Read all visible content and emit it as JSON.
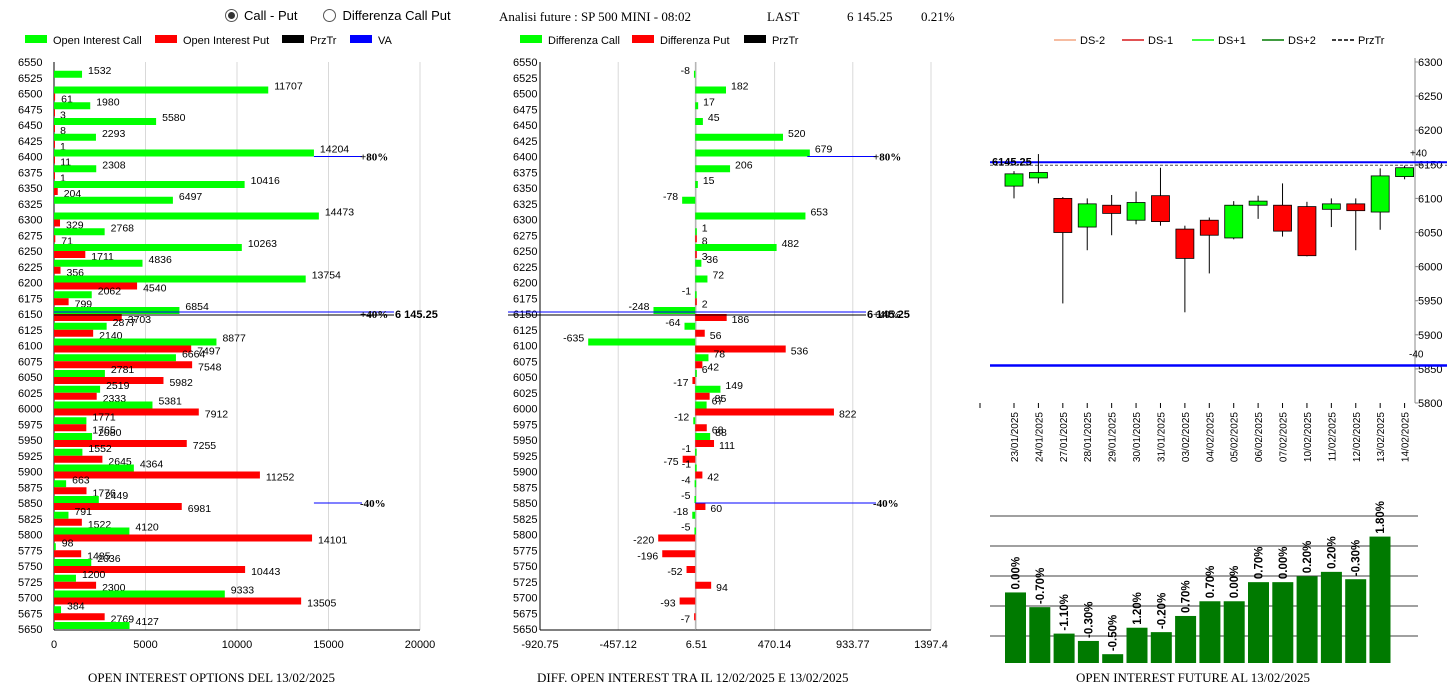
{
  "toolbar": {
    "radio_call_put": "Call - Put",
    "radio_diff": "Differenza Call Put",
    "header_title": "Analisi future : SP 500 MINI - 08:02",
    "header_last_label": "LAST",
    "header_last_value": "6 145.25",
    "header_change": "0.21%"
  },
  "colors": {
    "call": "#00ff00",
    "put": "#ff0000",
    "prztr": "#000000",
    "va": "#0000ff",
    "dark_green": "#007a00"
  },
  "chart_data": [
    {
      "type": "bar",
      "orientation": "horizontal",
      "title": "OPEN INTEREST OPTIONS DEL 13/02/2025",
      "legend": [
        "Open Interest Call",
        "Open Interest Put",
        "PrzTr",
        "VA"
      ],
      "categories": [
        "6550",
        "6525",
        "6500",
        "6475",
        "6450",
        "6425",
        "6400",
        "6375",
        "6350",
        "6325",
        "6300",
        "6275",
        "6250",
        "6225",
        "6200",
        "6175",
        "6150",
        "6125",
        "6100",
        "6075",
        "6050",
        "6025",
        "6000",
        "5975",
        "5950",
        "5925",
        "5900",
        "5875",
        "5850",
        "5825",
        "5800",
        "5775",
        "5750",
        "5725",
        "5700",
        "5675",
        "5650"
      ],
      "series": [
        {
          "name": "Open Interest Call",
          "values": [
            null,
            1532,
            11707,
            1980,
            5580,
            2293,
            14204,
            2308,
            10416,
            6497,
            14473,
            2768,
            10263,
            4836,
            13754,
            2062,
            6854,
            2877,
            8877,
            6664,
            2781,
            2519,
            5381,
            1771,
            2080,
            1552,
            4364,
            663,
            2449,
            791,
            4120,
            98,
            2036,
            1200,
            9333,
            384,
            4127
          ]
        },
        {
          "name": "Open Interest Put",
          "values": [
            null,
            null,
            61,
            3,
            8,
            1,
            11,
            1,
            204,
            null,
            329,
            71,
            1711,
            356,
            4540,
            799,
            3703,
            2140,
            7497,
            7548,
            5982,
            2333,
            7912,
            1765,
            7255,
            2645,
            11252,
            1776,
            6981,
            1522,
            14101,
            1485,
            10443,
            2300,
            13505,
            2769,
            null
          ]
        }
      ],
      "xticks": [
        "0",
        "5000",
        "10000",
        "15000",
        "20000"
      ],
      "xlim": [
        0,
        20000
      ],
      "reference_lines": [
        {
          "category": "6400",
          "label": "+80%"
        },
        {
          "category": "6150",
          "label": "+40%"
        },
        {
          "category": "5850",
          "label": "-40%"
        }
      ],
      "price_label": "6 145.25"
    },
    {
      "type": "bar",
      "orientation": "horizontal",
      "title": "DIFF. OPEN INTEREST TRA IL 12/02/2025 E 13/02/2025",
      "legend": [
        "Differenza Call",
        "Differenza Put",
        "PrzTr"
      ],
      "categories": [
        "6550",
        "6525",
        "6500",
        "6475",
        "6450",
        "6425",
        "6400",
        "6375",
        "6350",
        "6325",
        "6300",
        "6275",
        "6250",
        "6225",
        "6200",
        "6175",
        "6150",
        "6125",
        "6100",
        "6075",
        "6050",
        "6025",
        "6000",
        "5975",
        "5950",
        "5925",
        "5900",
        "5875",
        "5850",
        "5825",
        "5800",
        "5775",
        "5750",
        "5725",
        "5700",
        "5675",
        "5650"
      ],
      "series": [
        {
          "name": "Differenza Call",
          "values": [
            null,
            -8,
            182,
            17,
            45,
            520,
            679,
            206,
            15,
            -78,
            653,
            1,
            482,
            36,
            72,
            -1,
            -248,
            -64,
            -635,
            78,
            6,
            149,
            67,
            -12,
            88,
            -1,
            -1,
            -4,
            -5,
            -18,
            -5,
            null,
            null,
            null,
            null,
            null,
            null
          ]
        },
        {
          "name": "Differenza Put",
          "values": [
            null,
            null,
            null,
            null,
            null,
            null,
            null,
            null,
            null,
            null,
            null,
            8,
            3,
            null,
            null,
            2,
            186,
            56,
            536,
            42,
            -17,
            85,
            822,
            68,
            111,
            -75,
            42,
            null,
            60,
            null,
            -220,
            -196,
            -52,
            94,
            -93,
            -7,
            null
          ]
        }
      ],
      "xticks": [
        "-920.75",
        "-457.12",
        "6.51",
        "470.14",
        "933.77",
        "1397.4"
      ],
      "xlim": [
        -920.75,
        1397.4
      ],
      "reference_lines": [
        {
          "category": "6400",
          "label": "+80%"
        },
        {
          "category": "6150",
          "label": "+40%"
        },
        {
          "category": "5850",
          "label": "-40%"
        }
      ],
      "price_label": "6 145.25"
    },
    {
      "type": "candlestick",
      "legend": [
        "DS-2",
        "DS-1",
        "DS+1",
        "DS+2",
        "PrzTr"
      ],
      "x": [
        "23/01/2025",
        "24/01/2025",
        "27/01/2025",
        "28/01/2025",
        "29/01/2025",
        "30/01/2025",
        "31/01/2025",
        "03/02/2025",
        "04/02/2025",
        "05/02/2025",
        "06/02/2025",
        "07/02/2025",
        "10/02/2025",
        "11/02/2025",
        "12/02/2025",
        "13/02/2025",
        "14/02/2025"
      ],
      "ohlc": [
        [
          6118,
          6140,
          6100,
          6136
        ],
        [
          6130,
          6165,
          6122,
          6138
        ],
        [
          6100,
          6102,
          5946,
          6050
        ],
        [
          6058,
          6100,
          6024,
          6092
        ],
        [
          6090,
          6105,
          6046,
          6078
        ],
        [
          6068,
          6110,
          6062,
          6094
        ],
        [
          6104,
          6145,
          6060,
          6066
        ],
        [
          6055,
          6060,
          5933,
          6012
        ],
        [
          6068,
          6072,
          5990,
          6046
        ],
        [
          6042,
          6096,
          6040,
          6090
        ],
        [
          6090,
          6104,
          6070,
          6096
        ],
        [
          6090,
          6122,
          6044,
          6052
        ],
        [
          6088,
          6095,
          6015,
          6016
        ],
        [
          6084,
          6100,
          6058,
          6092
        ],
        [
          6092,
          6100,
          6024,
          6082
        ],
        [
          6080,
          6144,
          6054,
          6133
        ],
        [
          6132,
          6148,
          6128,
          6145
        ]
      ],
      "yticks": [
        "6300",
        "6250",
        "6200",
        "6150",
        "6100",
        "6050",
        "6000",
        "5950",
        "5900",
        "5850",
        "5800"
      ],
      "ylim": [
        5800,
        6300
      ],
      "price_label": "6145.25",
      "upper_line": {
        "value": 6150,
        "label": "+40"
      },
      "lower_line": {
        "value": 5855,
        "label": "-40"
      }
    },
    {
      "type": "bar",
      "title": "OPEN INTEREST FUTURE AL 13/02/2025",
      "values": [
        0.0,
        -0.7,
        -1.1,
        -0.3,
        -0.5,
        1.2,
        -0.2,
        0.7,
        0.7,
        0.0,
        0.7,
        0.0,
        0.2,
        0.2,
        -0.3,
        1.8
      ],
      "labels": [
        "0.00%",
        "-0.70%",
        "-1.10%",
        "-0.30%",
        "-0.50%",
        "1.20%",
        "-0.20%",
        "0.70%",
        "0.70%",
        "0.00%",
        "0.70%",
        "0.00%",
        "0.20%",
        "0.20%",
        "-0.30%",
        "1.80%"
      ],
      "levels": [
        0.48,
        0.38,
        0.2,
        0.15,
        0.06,
        0.24,
        0.21,
        0.32,
        0.42,
        0.42,
        0.55,
        0.55,
        0.59,
        0.62,
        0.57,
        0.86
      ]
    }
  ]
}
